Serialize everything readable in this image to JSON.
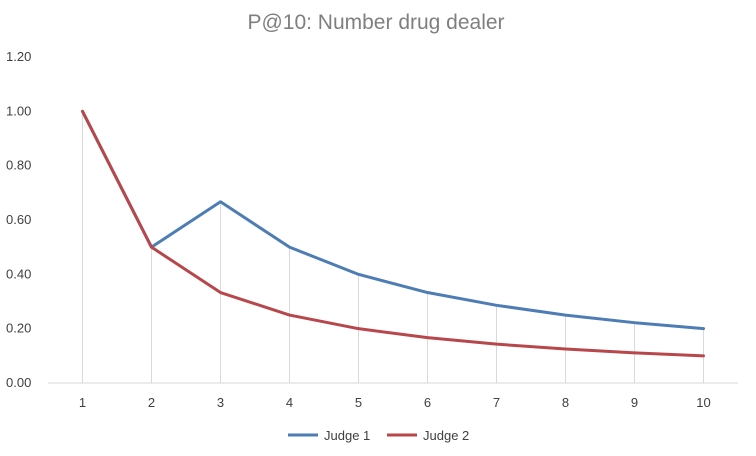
{
  "chart_data": {
    "type": "line",
    "title": "P@10: Number drug dealer",
    "xlabel": "",
    "ylabel": "",
    "categories": [
      "1",
      "2",
      "3",
      "4",
      "5",
      "6",
      "7",
      "8",
      "9",
      "10"
    ],
    "ylim": [
      0,
      1.2
    ],
    "yticks": [
      "0.00",
      "0.20",
      "0.40",
      "0.60",
      "0.80",
      "1.00",
      "1.20"
    ],
    "grid": "vertical drop lines at each category",
    "legend": "bottom",
    "series": [
      {
        "name": "Judge 1",
        "color": "#4e7db5",
        "values": [
          1.0,
          0.5,
          0.667,
          0.5,
          0.4,
          0.333,
          0.286,
          0.25,
          0.222,
          0.2
        ]
      },
      {
        "name": "Judge 2",
        "color": "#b8474b",
        "values": [
          1.0,
          0.5,
          0.333,
          0.25,
          0.2,
          0.167,
          0.143,
          0.125,
          0.111,
          0.1
        ]
      }
    ]
  }
}
